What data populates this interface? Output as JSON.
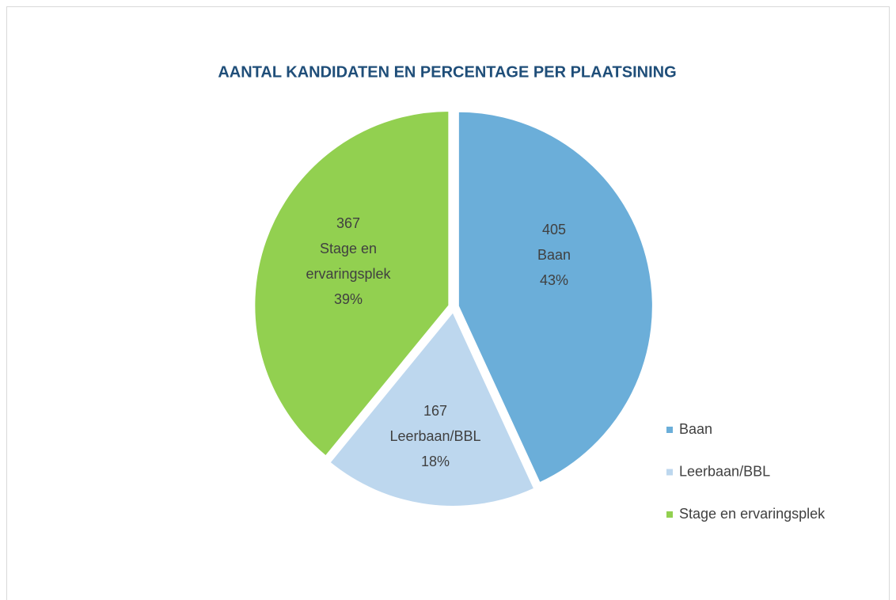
{
  "chart_data": {
    "type": "pie",
    "title": "AANTAL KANDIDATEN EN PERCENTAGE PER PLAATSINING",
    "categories": [
      "Baan",
      "Leerbaan/BBL",
      "Stage en ervaringsplek"
    ],
    "values": [
      405,
      167,
      367
    ],
    "percent_labels": [
      "43%",
      "18%",
      "39%"
    ],
    "colors": [
      "#6baed9",
      "#bdd7ee",
      "#92d050"
    ],
    "legend": "right"
  }
}
